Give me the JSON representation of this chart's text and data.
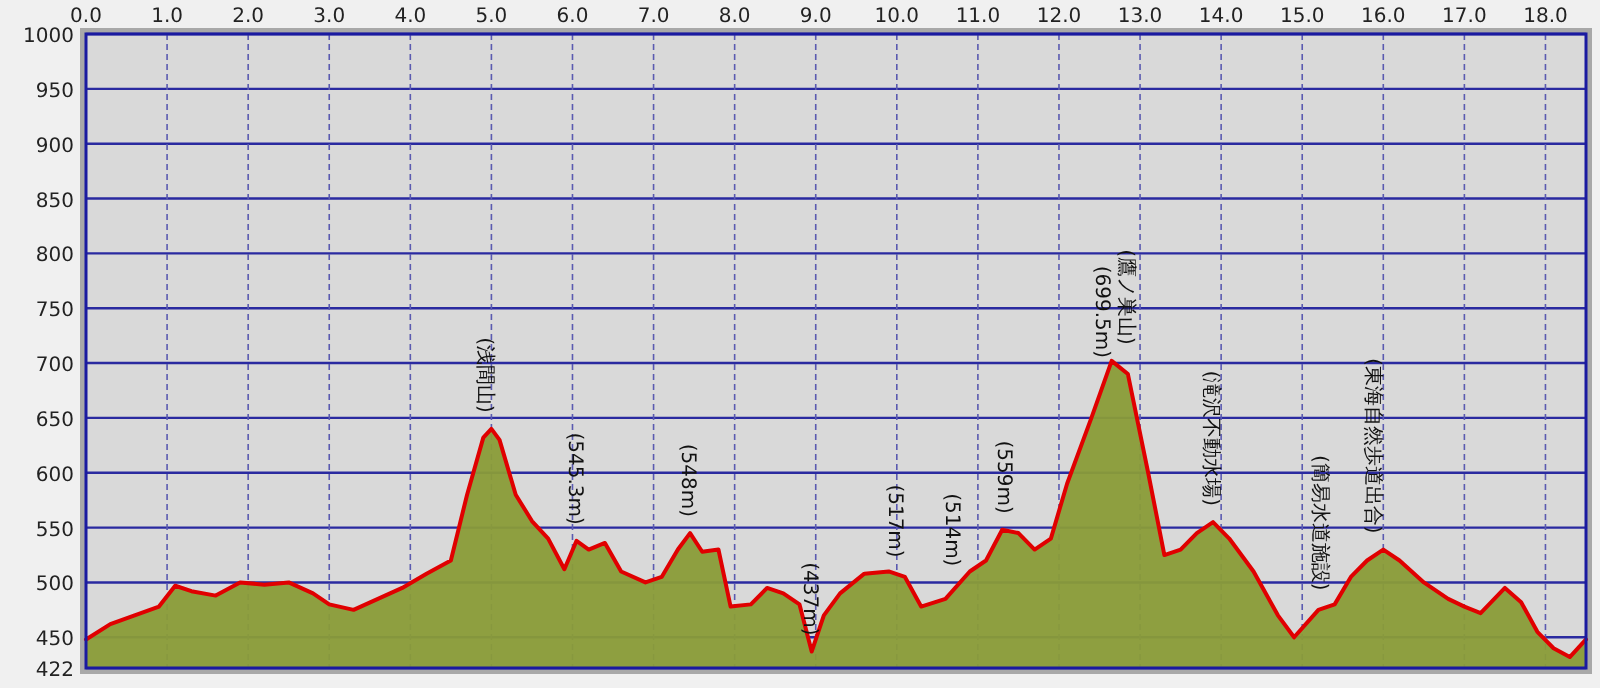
{
  "chart_data": {
    "type": "area",
    "xlim": [
      0,
      18.5
    ],
    "ylim": [
      422,
      1000
    ],
    "xticks": [
      {
        "value": 0,
        "label": "0.0"
      },
      {
        "value": 1,
        "label": "1.0"
      },
      {
        "value": 2,
        "label": "2.0"
      },
      {
        "value": 3,
        "label": "3.0"
      },
      {
        "value": 4,
        "label": "4.0"
      },
      {
        "value": 5,
        "label": "5.0"
      },
      {
        "value": 6,
        "label": "6.0"
      },
      {
        "value": 7,
        "label": "7.0"
      },
      {
        "value": 8,
        "label": "8.0"
      },
      {
        "value": 9,
        "label": "9.0"
      },
      {
        "value": 10,
        "label": "10.0"
      },
      {
        "value": 11,
        "label": "11.0"
      },
      {
        "value": 12,
        "label": "12.0"
      },
      {
        "value": 13,
        "label": "13.0"
      },
      {
        "value": 14,
        "label": "14.0"
      },
      {
        "value": 15,
        "label": "15.0"
      },
      {
        "value": 16,
        "label": "16.0"
      },
      {
        "value": 17,
        "label": "17.0"
      },
      {
        "value": 18,
        "label": "18.0"
      }
    ],
    "yticks": [
      422,
      450,
      500,
      550,
      600,
      650,
      700,
      750,
      800,
      850,
      900,
      950,
      1000
    ],
    "grid": true,
    "series": [
      {
        "color": "#8a9c38",
        "x": [
          0,
          0.3,
          0.6,
          0.9,
          1.1,
          1.3,
          1.6,
          1.9,
          2.2,
          2.5,
          2.8,
          3.0,
          3.3,
          3.6,
          3.9,
          4.2,
          4.5,
          4.7,
          4.9,
          5.0,
          5.1,
          5.3,
          5.5,
          5.7,
          5.9,
          6.05,
          6.2,
          6.4,
          6.6,
          6.9,
          7.1,
          7.3,
          7.45,
          7.6,
          7.8,
          7.95,
          8.2,
          8.4,
          8.6,
          8.8,
          8.95,
          9.1,
          9.3,
          9.6,
          9.9,
          10.1,
          10.3,
          10.6,
          10.9,
          11.1,
          11.3,
          11.5,
          11.7,
          11.9,
          12.1,
          12.4,
          12.65,
          12.85,
          13.1,
          13.3,
          13.5,
          13.7,
          13.9,
          14.1,
          14.4,
          14.7,
          14.9,
          15.2,
          15.4,
          15.6,
          15.8,
          16.0,
          16.2,
          16.5,
          16.8,
          17.0,
          17.2,
          17.5,
          17.7,
          17.9,
          18.1,
          18.3,
          18.5
        ],
        "values": [
          448,
          462,
          470,
          478,
          497,
          492,
          488,
          500,
          498,
          500,
          490,
          480,
          475,
          485,
          495,
          508,
          520,
          580,
          632,
          640,
          630,
          580,
          556,
          540,
          512,
          538,
          530,
          536,
          510,
          500,
          505,
          530,
          545,
          528,
          530,
          478,
          480,
          495,
          490,
          480,
          437,
          470,
          490,
          508,
          510,
          505,
          478,
          485,
          510,
          520,
          548,
          545,
          530,
          540,
          590,
          650,
          702,
          690,
          600,
          525,
          530,
          545,
          555,
          540,
          510,
          470,
          450,
          475,
          480,
          505,
          520,
          530,
          520,
          500,
          485,
          478,
          472,
          495,
          482,
          455,
          440,
          432,
          448
        ]
      }
    ],
    "annotations": [
      {
        "text": "(浅間山)",
        "x": 4.95,
        "y": 640
      },
      {
        "text": "(545.3m)",
        "x": 6.05,
        "y": 538
      },
      {
        "text": "(548m)",
        "x": 7.45,
        "y": 545
      },
      {
        "text": "(437m)",
        "x": 8.95,
        "y": 437
      },
      {
        "text": "(517m)",
        "x": 10.0,
        "y": 508
      },
      {
        "text": "(514m)",
        "x": 10.7,
        "y": 500
      },
      {
        "text": "(559m)",
        "x": 11.35,
        "y": 548
      },
      {
        "text": "(699.5m)",
        "x": 12.55,
        "y": 690
      },
      {
        "text": "(鷹ノ巣山)",
        "x": 12.85,
        "y": 702
      },
      {
        "text": "(滝沢不動水場)",
        "x": 13.9,
        "y": 555
      },
      {
        "text": "(簡易水道施設)",
        "x": 15.25,
        "y": 478
      },
      {
        "text": "(東海自然歩道出合)",
        "x": 15.9,
        "y": 530
      }
    ]
  }
}
